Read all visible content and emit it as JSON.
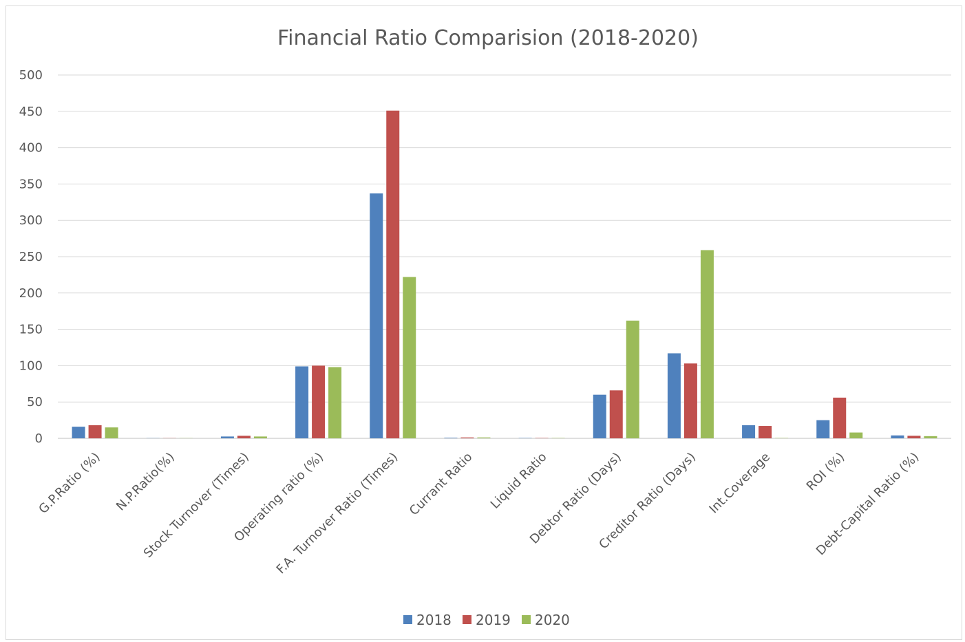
{
  "chart_data": {
    "type": "bar",
    "title": "Financial Ratio Comparision (2018-2020)",
    "xlabel": "",
    "ylabel": "",
    "ylim": [
      0,
      500
    ],
    "yticks": [
      0,
      50,
      100,
      150,
      200,
      250,
      300,
      350,
      400,
      450,
      500
    ],
    "grid": true,
    "legend_position": "bottom",
    "categories": [
      "G.P.Ratio (%)",
      "N.P.Ratio(%)",
      "Stock Turnover (Times)",
      "Operating ratio (%)",
      "F.A. Turnover Ratio (Times)",
      "Currant Ratio",
      "Liquid Ratio",
      "Debtor Ratio (Days)",
      "Creditor Ratio (Days)",
      "Int.Coverage",
      "ROI (%)",
      "Debt-Capital Ratio (%)"
    ],
    "series": [
      {
        "name": "2018",
        "color": "#4f81bd",
        "values": [
          16,
          0.3,
          2.5,
          99,
          337,
          0.8,
          0.5,
          60,
          117,
          18,
          25,
          4
        ]
      },
      {
        "name": "2019",
        "color": "#c0504d",
        "values": [
          18,
          0.3,
          3.5,
          100,
          451,
          1.2,
          0.5,
          66,
          103,
          17,
          56,
          3.5
        ]
      },
      {
        "name": "2020",
        "color": "#9bbb59",
        "values": [
          15,
          0.3,
          2.5,
          98,
          222,
          1.2,
          0.5,
          162,
          259,
          0.5,
          8,
          3
        ]
      }
    ]
  }
}
